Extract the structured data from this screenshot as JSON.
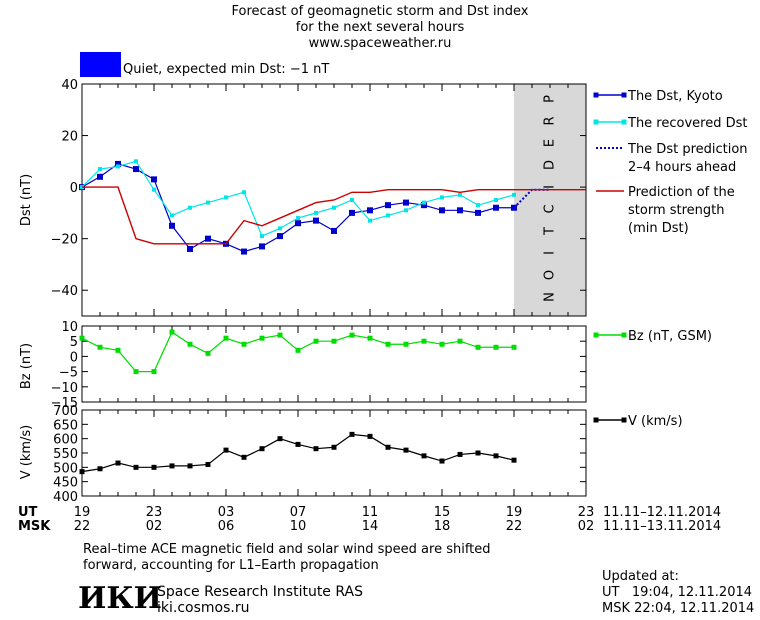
{
  "header": {
    "title_line1": "Forecast of geomagnetic storm and Dst index",
    "title_line2": "for the next several hours",
    "url": "www.spaceweather.ru"
  },
  "status": {
    "label": "Quiet, expected min Dst: −1 nT",
    "color": "#0000ff"
  },
  "legend": {
    "dst_kyoto": "The Dst, Kyoto",
    "recovered": "The recovered Dst",
    "prediction_l1": "The Dst prediction",
    "prediction_l2": "2–4 hours ahead",
    "strength_l1": "Prediction of the",
    "strength_l2": "storm strength",
    "strength_l3": "(min Dst)",
    "bz": "Bz (nT, GSM)",
    "v": "V (km/s)"
  },
  "prediction_label": "PREDICTION",
  "time_axis": {
    "ut_label": "UT",
    "msk_label": "MSK",
    "ut_ticks": [
      "19",
      "23",
      "03",
      "07",
      "11",
      "15",
      "19",
      "23"
    ],
    "msk_ticks": [
      "22",
      "02",
      "06",
      "10",
      "14",
      "18",
      "22",
      "02"
    ],
    "ut_range": "11.11–12.11.2014",
    "msk_range": "11.11–13.11.2014"
  },
  "footer": {
    "note_l1": "Real–time ACE magnetic field and solar wind speed are shifted",
    "note_l2": "forward, accounting for L1–Earth propagation",
    "logo_text": "ИКИ",
    "institute": "Space Research Institute RAS",
    "site": "iki.cosmos.ru",
    "updated_label": "Updated at:",
    "updated_ut": "UT   19:04, 12.11.2014",
    "updated_msk": "MSK 22:04, 12.11.2014"
  },
  "colors": {
    "dst": "#0000cc",
    "recovered": "#00e5e5",
    "prediction": "#0000cc",
    "strength": "#cc0000",
    "bz": "#00dd00",
    "v": "#000000",
    "prediction_band": "#d8d8d8"
  },
  "chart_data": [
    {
      "type": "line",
      "ylabel": "Dst (nT)",
      "ylim": [
        -50,
        40
      ],
      "yticks": [
        40,
        20,
        0,
        -20,
        -40
      ],
      "x_unit": "hours",
      "xlim": [
        0,
        28
      ],
      "prediction_start": 24,
      "series": [
        {
          "name": "The Dst, Kyoto",
          "x": [
            0,
            1,
            2,
            3,
            4,
            5,
            6,
            7,
            8,
            9,
            10,
            11,
            12,
            13,
            14,
            15,
            16,
            17,
            18,
            19,
            20,
            21,
            22,
            23,
            24
          ],
          "values": [
            0,
            4,
            9,
            7,
            3,
            -15,
            -24,
            -20,
            -22,
            -25,
            -23,
            -19,
            -14,
            -13,
            -17,
            -10,
            -9,
            -7,
            -6,
            -7,
            -9,
            -9,
            -10,
            -8,
            -8
          ]
        },
        {
          "name": "The recovered Dst",
          "x": [
            0,
            1,
            2,
            3,
            4,
            5,
            6,
            7,
            8,
            9,
            10,
            11,
            12,
            13,
            14,
            15,
            16,
            17,
            18,
            19,
            20,
            21,
            22,
            23,
            24
          ],
          "values": [
            0,
            7,
            8,
            10,
            -1,
            -11,
            -8,
            -6,
            -4,
            -2,
            -19,
            -16,
            -12,
            -10,
            -8,
            -5,
            -13,
            -11,
            -9,
            -6,
            -4,
            -3,
            -7,
            -5,
            -3
          ]
        },
        {
          "name": "The Dst prediction 2–4 hours ahead",
          "x": [
            24,
            25,
            26
          ],
          "values": [
            -8,
            -1,
            -1
          ]
        },
        {
          "name": "Prediction of the storm strength (min Dst)",
          "x": [
            0,
            2,
            3,
            4,
            5,
            6,
            7,
            8,
            9,
            10,
            11,
            12,
            13,
            14,
            15,
            16,
            17,
            18,
            19,
            20,
            21,
            22,
            23,
            24,
            25,
            26,
            27,
            28
          ],
          "values": [
            0,
            0,
            -20,
            -22,
            -22,
            -22,
            -22,
            -22,
            -13,
            -15,
            -12,
            -9,
            -6,
            -5,
            -2,
            -2,
            -1,
            -1,
            -1,
            -1,
            -2,
            -1,
            -1,
            -1,
            -1,
            -1,
            -1,
            -1
          ]
        }
      ]
    },
    {
      "type": "line",
      "ylabel": "Bz (nT)",
      "ylim": [
        -15,
        10
      ],
      "yticks": [
        10,
        5,
        0,
        -5,
        -10,
        -15
      ],
      "series": [
        {
          "name": "Bz (nT, GSM)",
          "x": [
            0,
            1,
            2,
            3,
            4,
            5,
            6,
            7,
            8,
            9,
            10,
            11,
            12,
            13,
            14,
            15,
            16,
            17,
            18,
            19,
            20,
            21,
            22,
            23,
            24
          ],
          "values": [
            6,
            3,
            2,
            -5,
            -5,
            8,
            4,
            1,
            6,
            4,
            6,
            7,
            2,
            5,
            5,
            7,
            6,
            4,
            4,
            5,
            4,
            5,
            3,
            3,
            3
          ]
        }
      ]
    },
    {
      "type": "line",
      "ylabel": "V (km/s)",
      "ylim": [
        400,
        700
      ],
      "yticks": [
        700,
        650,
        600,
        550,
        500,
        450,
        400
      ],
      "series": [
        {
          "name": "V (km/s)",
          "x": [
            0,
            1,
            2,
            3,
            4,
            5,
            6,
            7,
            8,
            9,
            10,
            11,
            12,
            13,
            14,
            15,
            16,
            17,
            18,
            19,
            20,
            21,
            22,
            23,
            24
          ],
          "values": [
            485,
            495,
            515,
            500,
            500,
            505,
            505,
            510,
            560,
            535,
            565,
            600,
            580,
            565,
            570,
            615,
            608,
            570,
            560,
            540,
            522,
            545,
            550,
            540,
            525
          ]
        }
      ]
    }
  ]
}
